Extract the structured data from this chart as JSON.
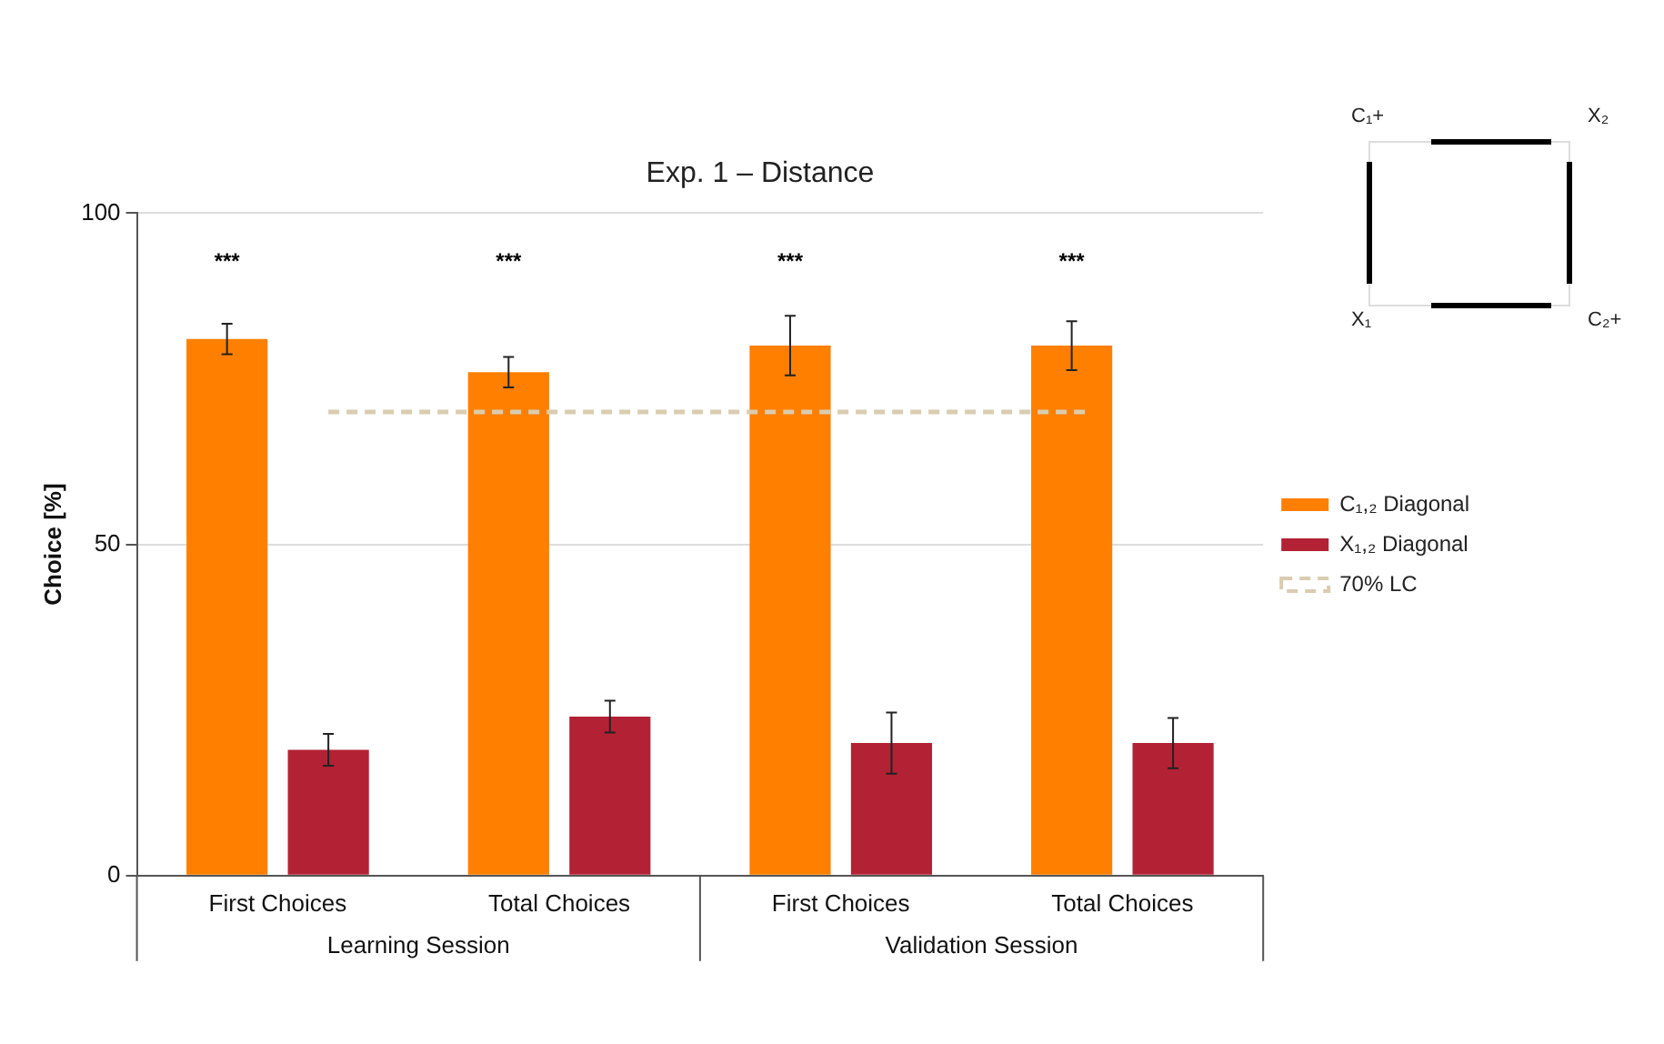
{
  "chart_data": {
    "type": "bar",
    "title": "Exp. 1 – Distance",
    "ylabel": "Choice [%]",
    "categories": [
      "First Choices",
      "Total Choices",
      "First Choices",
      "Total Choices"
    ],
    "series": [
      {
        "name": "C₁,₂ Diagonal",
        "color": "#ff7f00",
        "values": [
          81,
          76,
          80,
          80
        ],
        "errors": [
          2.3,
          2.3,
          4.5,
          3.7
        ]
      },
      {
        "name": "X₁,₂ Diagonal",
        "color": "#b22234",
        "values": [
          19,
          24,
          20,
          20
        ],
        "errors": [
          2.4,
          2.4,
          4.6,
          3.8
        ]
      }
    ],
    "ylim": [
      0,
      100
    ],
    "yticks": [
      0,
      50,
      100
    ],
    "grid": "y",
    "legend": "right",
    "ref_lines": [
      {
        "axis": "y",
        "value": 70,
        "label": "70% LC",
        "color": "#d9ccb0",
        "line_style": "dashed"
      }
    ],
    "annotations": [
      "***",
      "***",
      "***",
      "***",
      "Learning Session",
      "Validation Session",
      "C₁+",
      "X₂",
      "X₁",
      "C₂+"
    ]
  }
}
